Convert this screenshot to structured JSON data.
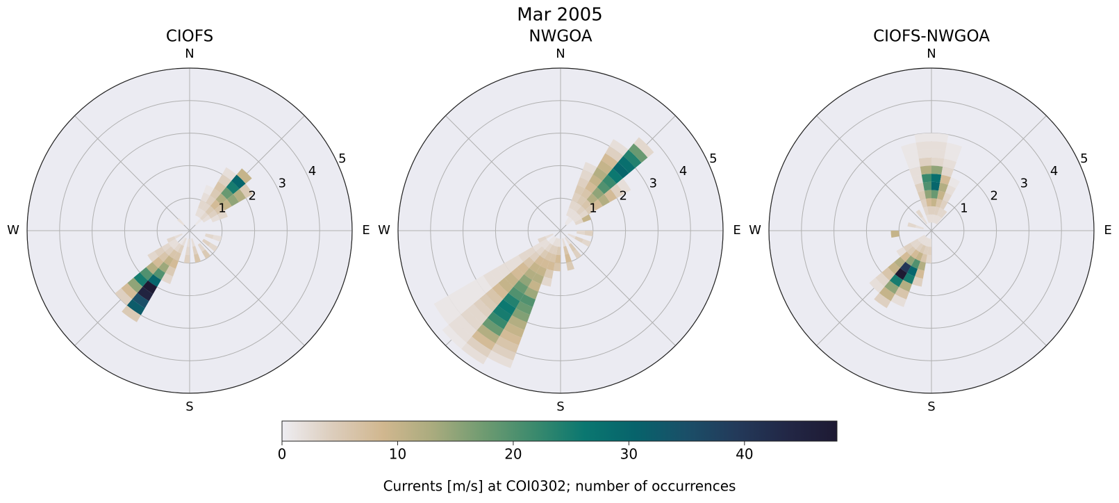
{
  "chart_data": {
    "type": "polar-histogram",
    "title": "Mar 2005",
    "rlim": [
      0,
      5
    ],
    "rticks": [
      1,
      2,
      3,
      4,
      5
    ],
    "rlabel_direction": 67.5,
    "thetagrid": [
      0,
      45,
      90,
      135,
      180,
      225,
      270,
      315
    ],
    "thetaticks": [
      {
        "value": 0,
        "label": "N"
      },
      {
        "value": 90,
        "label": "E"
      },
      {
        "value": 180,
        "label": "S"
      },
      {
        "value": 270,
        "label": "W"
      }
    ],
    "direction_width": 10,
    "speed_edges": [
      0,
      0.25,
      0.5,
      0.75,
      1,
      1.25,
      1.5,
      1.75,
      2,
      2.25,
      2.5,
      2.75,
      3,
      3.25,
      3.5,
      3.75,
      4,
      4.25,
      4.5,
      4.75
    ],
    "panels": [
      {
        "title": "CIOFS",
        "bins": [
          {
            "direction": 25,
            "counts": [
              null,
              null,
              2,
              3,
              2,
              1
            ]
          },
          {
            "direction": 35,
            "counts": [
              null,
              null,
              2,
              3,
              4,
              5,
              6,
              4,
              2
            ]
          },
          {
            "direction": 45,
            "counts": [
              null,
              1,
              3,
              5,
              8,
              12,
              18,
              25,
              30,
              10
            ]
          },
          {
            "direction": 55,
            "counts": [
              null,
              null,
              2,
              4,
              6,
              10,
              15,
              12,
              5
            ]
          },
          {
            "direction": 65,
            "counts": [
              null,
              null,
              null,
              2,
              3
            ]
          },
          {
            "direction": 105,
            "counts": [
              null,
              null,
              3,
              2
            ]
          },
          {
            "direction": 125,
            "counts": [
              null,
              null,
              4,
              3
            ]
          },
          {
            "direction": 145,
            "counts": [
              null,
              null,
              3,
              5
            ]
          },
          {
            "direction": 165,
            "counts": [
              null,
              2,
              4,
              6
            ]
          },
          {
            "direction": 185,
            "counts": [
              null,
              2,
              3,
              4
            ]
          },
          {
            "direction": 205,
            "counts": [
              null,
              2,
              4,
              6,
              8,
              5,
              3
            ]
          },
          {
            "direction": 215,
            "counts": [
              null,
              1,
              3,
              6,
              10,
              14,
              20,
              30,
              48,
              45,
              35,
              32,
              5
            ]
          },
          {
            "direction": 225,
            "counts": [
              null,
              null,
              2,
              4,
              6,
              8,
              12,
              20,
              25,
              15,
              8,
              4
            ]
          },
          {
            "direction": 235,
            "counts": [
              null,
              null,
              2,
              3,
              4,
              3
            ]
          },
          {
            "direction": 245,
            "counts": [
              null,
              2,
              3
            ]
          },
          {
            "direction": 315,
            "counts": [
              null,
              2
            ]
          }
        ]
      },
      {
        "title": "NWGOA",
        "bins": [
          {
            "direction": 25,
            "counts": [
              null,
              null,
              2,
              3,
              4,
              5,
              4,
              3,
              2
            ]
          },
          {
            "direction": 35,
            "counts": [
              null,
              1,
              2,
              3,
              5,
              6,
              8,
              10,
              12,
              10,
              8,
              4,
              2
            ]
          },
          {
            "direction": 45,
            "counts": [
              null,
              1,
              2,
              4,
              6,
              12,
              15,
              20,
              22,
              26,
              30,
              28,
              24,
              18,
              3
            ]
          },
          {
            "direction": 55,
            "counts": [
              null,
              null,
              2,
              3,
              5,
              8,
              12,
              8,
              4,
              2
            ]
          },
          {
            "direction": 65,
            "counts": [
              null,
              null,
              3,
              10
            ]
          },
          {
            "direction": 95,
            "counts": [
              null,
              null,
              3,
              4
            ]
          },
          {
            "direction": 115,
            "counts": [
              null,
              2,
              4,
              3
            ]
          },
          {
            "direction": 145,
            "counts": [
              null,
              2,
              5,
              4
            ]
          },
          {
            "direction": 165,
            "counts": [
              null,
              2,
              6,
              8,
              5
            ]
          },
          {
            "direction": 185,
            "counts": [
              null,
              2,
              5,
              8,
              6
            ]
          },
          {
            "direction": 195,
            "counts": [
              null,
              2,
              4,
              6,
              8,
              5,
              3
            ]
          },
          {
            "direction": 205,
            "counts": [
              null,
              2,
              4,
              6,
              8,
              10,
              12,
              10,
              14,
              20,
              18,
              16,
              12,
              10,
              8,
              6,
              4,
              2
            ]
          },
          {
            "direction": 215,
            "counts": [
              null,
              1,
              3,
              5,
              8,
              10,
              12,
              15,
              18,
              20,
              24,
              26,
              25,
              22,
              18,
              12,
              8,
              4,
              2
            ]
          },
          {
            "direction": 225,
            "counts": [
              null,
              1,
              2,
              3,
              4,
              6,
              8,
              8,
              10,
              10,
              8,
              6,
              5,
              4,
              3,
              3,
              2,
              2,
              1
            ]
          },
          {
            "direction": 235,
            "counts": [
              null,
              null,
              2,
              2,
              3,
              3,
              2,
              2,
              2,
              2,
              2,
              1,
              1,
              1,
              1,
              1,
              1,
              1
            ]
          },
          {
            "direction": 245,
            "counts": [
              null,
              2,
              3
            ]
          }
        ]
      },
      {
        "title": "CIOFS-NWGOA",
        "bins": [
          {
            "direction": 345,
            "counts": [
              null,
              2,
              3,
              4,
              5,
              4,
              2,
              2,
              1,
              1,
              1
            ]
          },
          {
            "direction": 355,
            "counts": [
              null,
              2,
              4,
              8,
              15,
              20,
              22,
              12,
              4,
              2,
              2,
              1
            ]
          },
          {
            "direction": 5,
            "counts": [
              null,
              2,
              4,
              10,
              18,
              30,
              28,
              15,
              3,
              2,
              2,
              1
            ]
          },
          {
            "direction": 15,
            "counts": [
              null,
              2,
              4,
              6,
              10,
              12,
              8,
              3,
              2,
              1,
              1
            ]
          },
          {
            "direction": 25,
            "counts": [
              null,
              2,
              3,
              4,
              3,
              2,
              1
            ]
          },
          {
            "direction": 35,
            "counts": [
              null,
              2,
              3
            ]
          },
          {
            "direction": 185,
            "counts": [
              null,
              2,
              4,
              3
            ]
          },
          {
            "direction": 195,
            "counts": [
              null,
              2,
              4,
              6,
              12,
              8,
              4
            ]
          },
          {
            "direction": 205,
            "counts": [
              null,
              2,
              5,
              10,
              20,
              30,
              25,
              12,
              6,
              2
            ]
          },
          {
            "direction": 215,
            "counts": [
              null,
              2,
              4,
              8,
              15,
              40,
              48,
              25,
              15,
              10,
              4
            ]
          },
          {
            "direction": 225,
            "counts": [
              null,
              2,
              3,
              5,
              8,
              12,
              10,
              6,
              3,
              2
            ]
          },
          {
            "direction": 235,
            "counts": [
              null,
              2,
              3,
              4,
              2
            ]
          },
          {
            "direction": 265,
            "counts": [
              null,
              null,
              null,
              null,
              10
            ]
          },
          {
            "direction": 285,
            "counts": [
              null,
              2,
              3
            ]
          },
          {
            "direction": 325,
            "counts": [
              null,
              2,
              3
            ]
          }
        ]
      }
    ],
    "colorbar": {
      "label": "Currents [m/s] at COI0302; number of occurrences",
      "clim": [
        0,
        48
      ],
      "ticks": [
        0,
        10,
        20,
        30,
        40
      ],
      "colors": [
        "#eeedf2",
        "#dccdbc",
        "#d1b78f",
        "#a9ab7e",
        "#6f9b71",
        "#3b8a6d",
        "#0a7770",
        "#07636b",
        "#1a4f68",
        "#233a5a",
        "#222746",
        "#1e1a33"
      ]
    }
  }
}
